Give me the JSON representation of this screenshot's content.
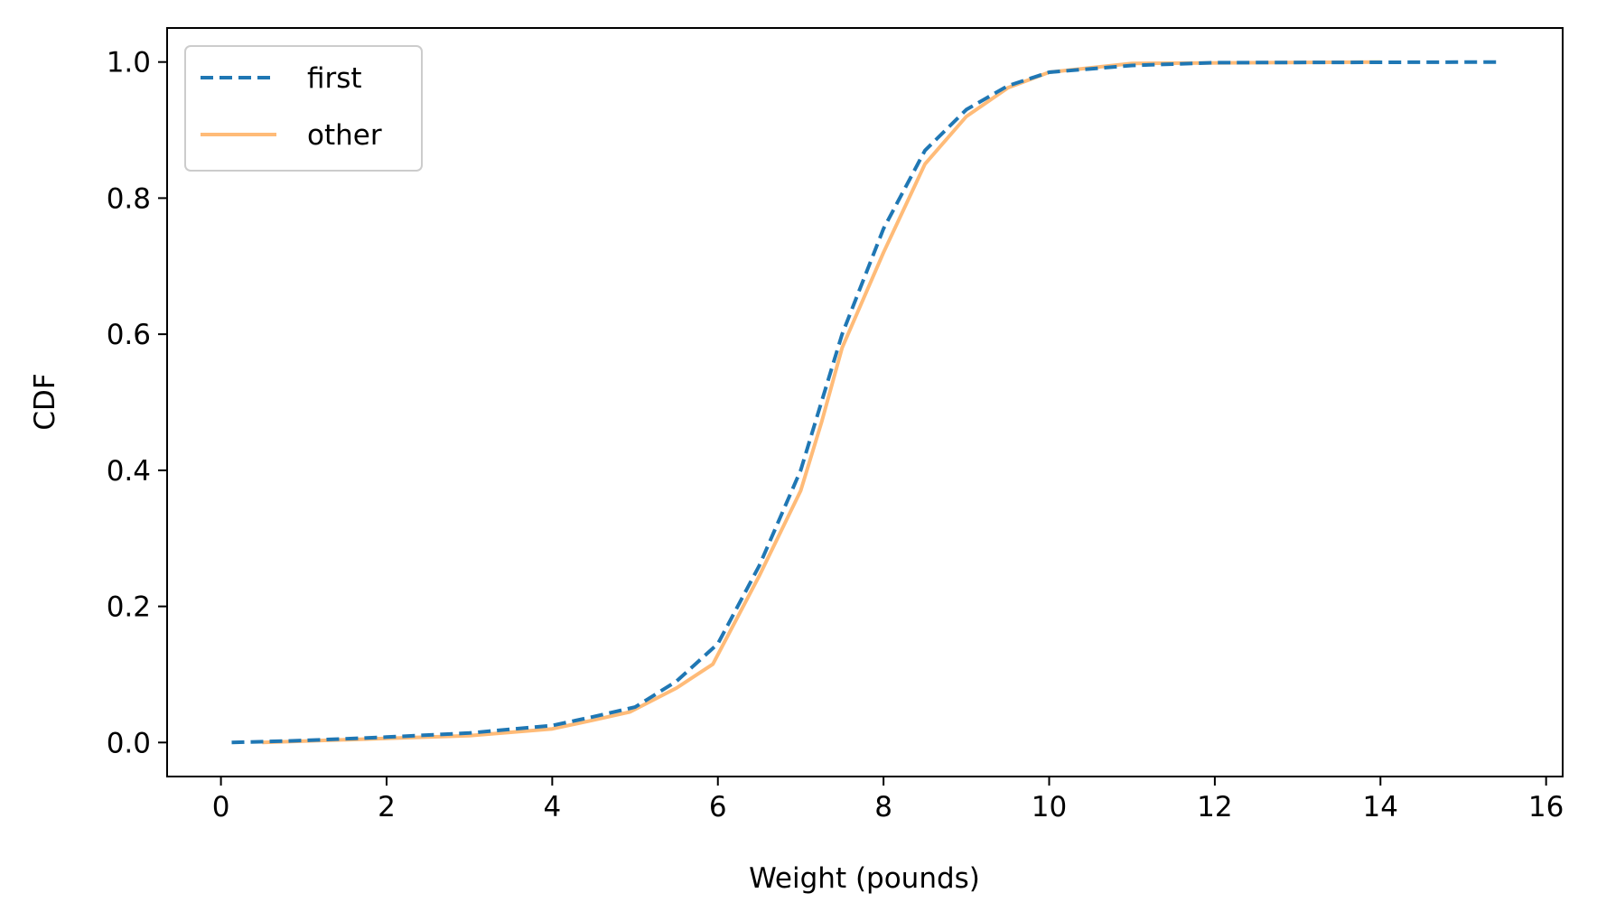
{
  "chart_data": {
    "type": "line",
    "title": "",
    "xlabel": "Weight (pounds)",
    "ylabel": "CDF",
    "xlim": [
      -0.65,
      16.2
    ],
    "ylim": [
      -0.05,
      1.05
    ],
    "xticks": [
      0,
      2,
      4,
      6,
      8,
      10,
      12,
      14,
      16
    ],
    "xtick_labels": [
      "0",
      "2",
      "4",
      "6",
      "8",
      "10",
      "12",
      "14",
      "16"
    ],
    "yticks": [
      0.0,
      0.2,
      0.4,
      0.6,
      0.8,
      1.0
    ],
    "ytick_labels": [
      "0.0",
      "0.2",
      "0.4",
      "0.6",
      "0.8",
      "1.0"
    ],
    "grid": false,
    "legend_position": "top-left",
    "series": [
      {
        "name": "first",
        "color": "#1f77b4",
        "style": "dashed",
        "x": [
          0.13,
          1,
          2,
          3,
          4,
          4.5,
          5,
          5.5,
          6,
          6.5,
          7,
          7.5,
          8,
          8.5,
          9,
          9.5,
          10,
          11,
          12,
          15.44
        ],
        "y": [
          0.0,
          0.003,
          0.008,
          0.014,
          0.025,
          0.038,
          0.052,
          0.09,
          0.145,
          0.26,
          0.4,
          0.6,
          0.755,
          0.87,
          0.93,
          0.965,
          0.985,
          0.995,
          0.999,
          1.0
        ]
      },
      {
        "name": "other",
        "color": "#ffbb78",
        "style": "solid",
        "x": [
          0.5,
          1,
          2,
          3,
          4,
          4.5,
          4.94,
          5.5,
          5.94,
          6.5,
          7,
          7.25,
          7.5,
          8,
          8.5,
          9,
          9.5,
          10,
          11,
          14
        ],
        "y": [
          0.0,
          0.002,
          0.006,
          0.01,
          0.02,
          0.033,
          0.045,
          0.08,
          0.115,
          0.245,
          0.37,
          0.47,
          0.58,
          0.72,
          0.85,
          0.92,
          0.962,
          0.985,
          0.998,
          1.0
        ]
      }
    ]
  }
}
